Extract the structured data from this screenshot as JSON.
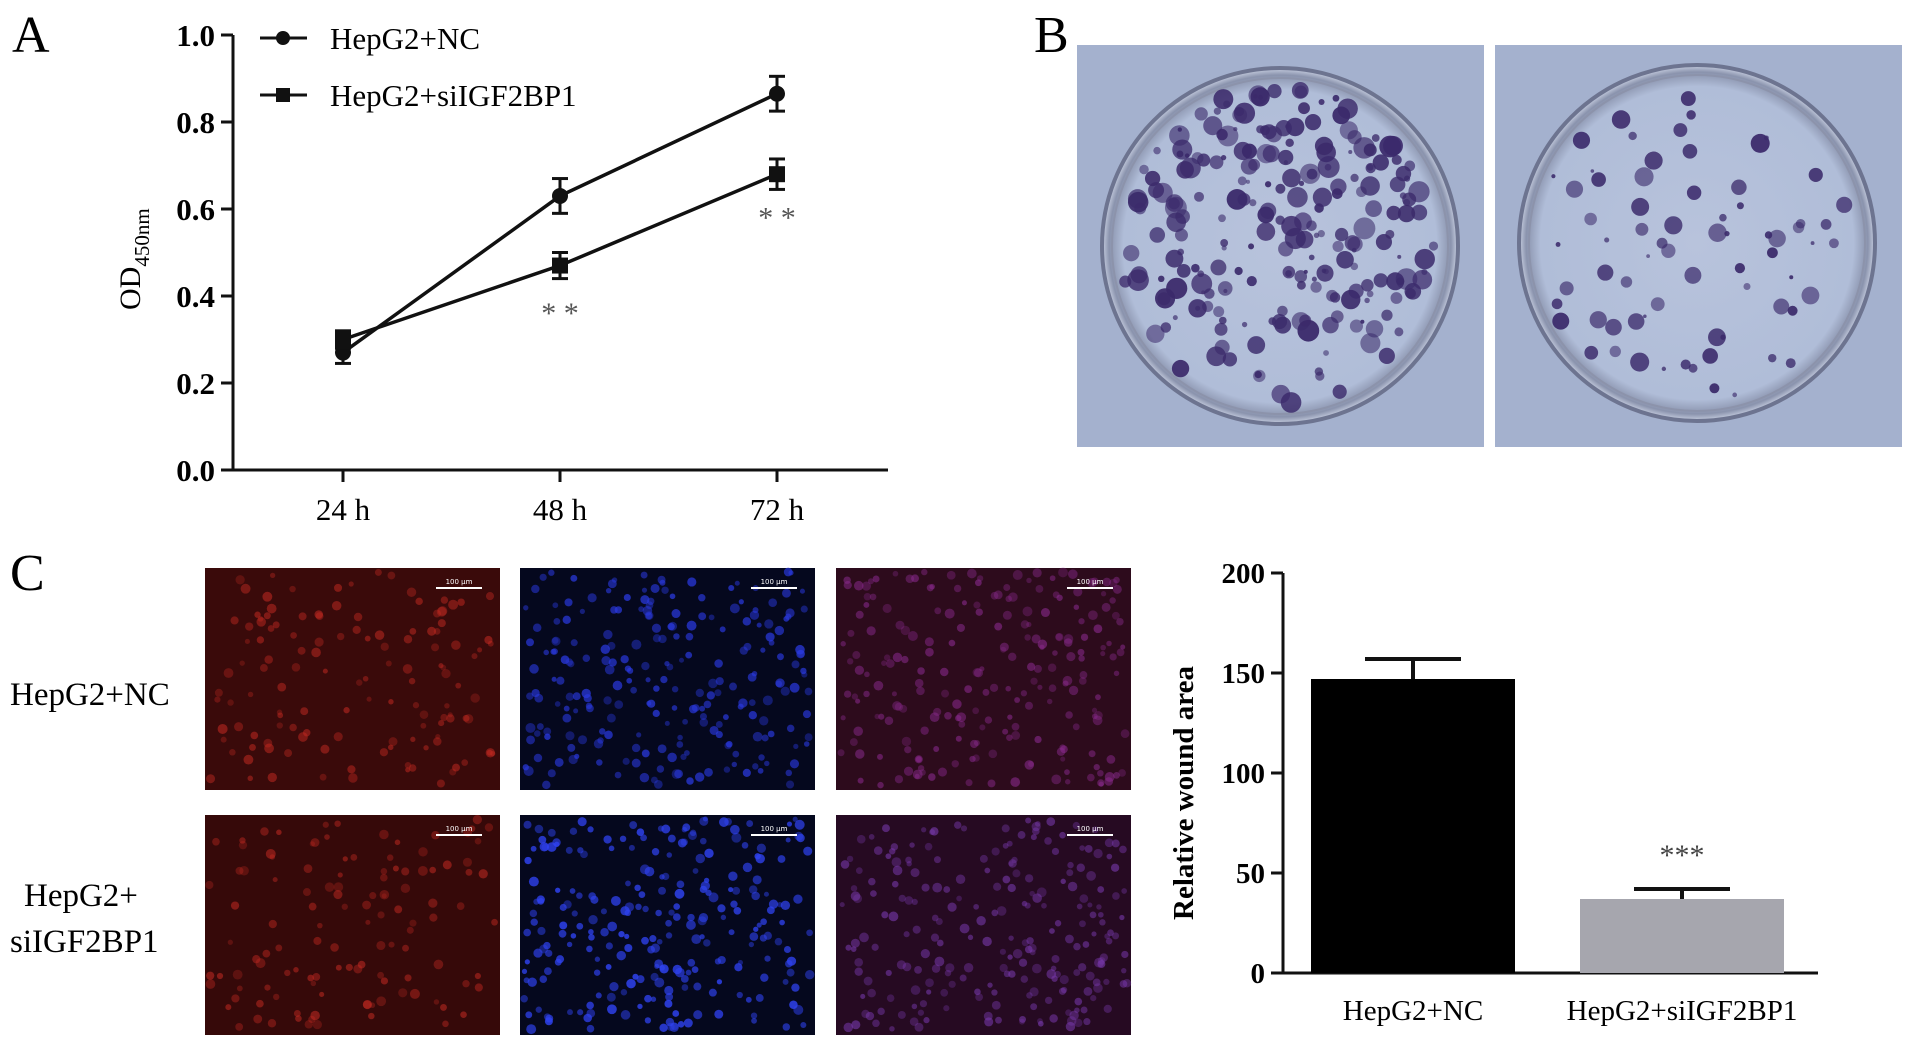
{
  "panels": {
    "a_label": "A",
    "b_label": "B",
    "c_label": "C"
  },
  "chart_data": [
    {
      "type": "line",
      "panel": "A",
      "title": "",
      "ylabel_main": "OD",
      "ylabel_sub": "450nm",
      "xlabel": "",
      "categories": [
        "24 h",
        "48 h",
        "72 h"
      ],
      "ylim": [
        0.0,
        1.0
      ],
      "yticks": [
        "0.0",
        "0.2",
        "0.4",
        "0.6",
        "0.8",
        "1.0"
      ],
      "legend_position": "top-left",
      "series": [
        {
          "name": "HepG2+NC",
          "marker": "circle",
          "values": [
            0.27,
            0.63,
            0.865
          ],
          "errors": [
            0.025,
            0.04,
            0.04
          ]
        },
        {
          "name": "HepG2+siIGF2BP1",
          "marker": "square",
          "values": [
            0.3,
            0.47,
            0.68
          ],
          "errors": [
            0.02,
            0.03,
            0.035
          ]
        }
      ],
      "annotations": [
        {
          "category": "48 h",
          "text": "* *",
          "value": 0.37
        },
        {
          "category": "72 h",
          "text": "* *",
          "value": 0.59
        }
      ]
    },
    {
      "type": "bar",
      "panel": "C",
      "title": "",
      "xlabel": "",
      "ylabel": "Relative wound area",
      "categories": [
        "HepG2+NC",
        "HepG2+siIGF2BP1"
      ],
      "values": [
        147,
        37
      ],
      "errors": [
        10,
        5
      ],
      "bar_colors": [
        "#000000",
        "#a6a6ae"
      ],
      "ylim": [
        0,
        200
      ],
      "yticks": [
        "0",
        "50",
        "100",
        "150",
        "200"
      ],
      "annotations": [
        {
          "category": "HepG2+siIGF2BP1",
          "text": "***",
          "value": 52
        }
      ]
    }
  ],
  "micrographs": {
    "row_labels": [
      "HepG2+NC",
      "HepG2+\nsiIGF2BP1"
    ],
    "row1_label": "HepG2+NC",
    "row2_label_line1": "HepG2+",
    "row2_label_line2": "siIGF2BP1",
    "scale_bar": "100 μm"
  },
  "colors": {
    "dish_background": "#a5b3cf",
    "colony": "#3b2a6b",
    "red_channel": "#e8322a",
    "blue_channel": "#2a3ce8"
  }
}
